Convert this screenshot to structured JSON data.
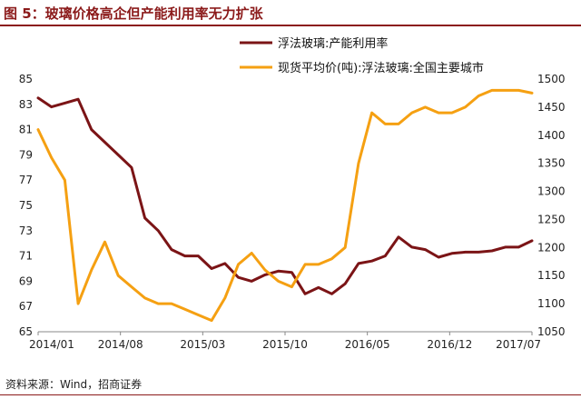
{
  "header": {
    "title": "图 5：玻璃价格高企但产能利用率无力扩张"
  },
  "source": {
    "text": "资料来源：Wind，招商证券"
  },
  "chart_data": {
    "type": "line",
    "x": [
      "2014-01",
      "2014-03",
      "2014-05",
      "2014-07",
      "2014-08",
      "2014-09",
      "2014-11",
      "2015-01",
      "2015-02",
      "2015-03",
      "2015-04",
      "2015-05",
      "2015-06",
      "2015-07",
      "2015-08",
      "2015-09",
      "2015-10",
      "2015-11",
      "2015-12",
      "2016-01",
      "2016-02",
      "2016-03",
      "2016-04",
      "2016-05",
      "2016-06",
      "2016-07",
      "2016-08",
      "2016-09",
      "2016-10",
      "2016-11",
      "2016-12",
      "2017-01",
      "2017-02",
      "2017-03",
      "2017-04",
      "2017-05",
      "2017-06",
      "2017-07"
    ],
    "series": [
      {
        "name": "浮法玻璃:产能利用率",
        "axis": "left",
        "color": "#7B1416",
        "values": [
          83.5,
          82.8,
          83.1,
          83.4,
          81.0,
          80.0,
          79.0,
          78.0,
          74.0,
          73.0,
          71.5,
          71.0,
          71.0,
          70.0,
          70.4,
          69.3,
          69.0,
          69.5,
          69.8,
          69.7,
          68.0,
          68.5,
          68.0,
          68.8,
          70.4,
          70.6,
          71.0,
          72.5,
          71.7,
          71.5,
          70.9,
          71.2,
          71.3,
          71.3,
          71.4,
          71.7,
          71.7,
          72.2
        ]
      },
      {
        "name": "现货平均价(吨):浮法玻璃:全国主要城市",
        "axis": "right",
        "color": "#F5A012",
        "values": [
          1410,
          1360,
          1320,
          1100,
          1160,
          1210,
          1150,
          1130,
          1110,
          1100,
          1100,
          1090,
          1080,
          1070,
          1110,
          1170,
          1190,
          1160,
          1140,
          1130,
          1170,
          1170,
          1180,
          1200,
          1350,
          1440,
          1420,
          1420,
          1440,
          1450,
          1440,
          1440,
          1450,
          1470,
          1480,
          1480,
          1480,
          1475
        ]
      }
    ],
    "x_tick_labels": [
      "2014/01",
      "2014/08",
      "2015/03",
      "2015/10",
      "2016/05",
      "2016/12",
      "2017/07"
    ],
    "y_left": {
      "range": [
        65,
        85
      ],
      "ticks": [
        65,
        67,
        69,
        71,
        73,
        75,
        77,
        79,
        81,
        83,
        85
      ]
    },
    "y_right": {
      "range": [
        1050,
        1500
      ],
      "ticks": [
        1050,
        1100,
        1150,
        1200,
        1250,
        1300,
        1350,
        1400,
        1450,
        1500
      ]
    },
    "legend_position": "top-center",
    "grid": false
  }
}
